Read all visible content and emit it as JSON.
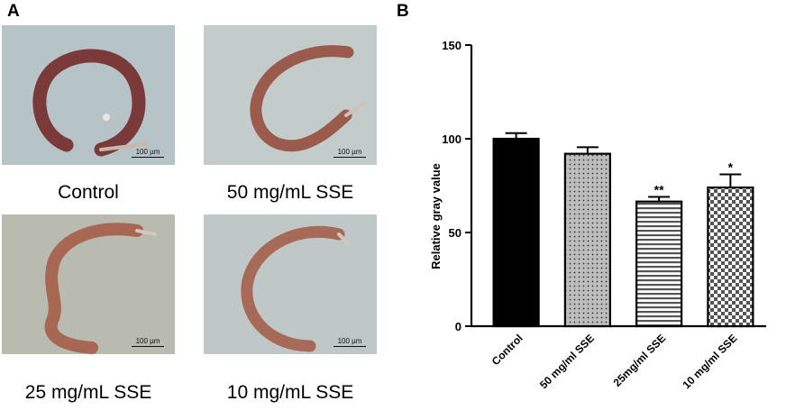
{
  "panel_a": {
    "letter": "A",
    "images": [
      {
        "caption": "Control",
        "scale": "100 µm"
      },
      {
        "caption": "50 mg/mL SSE",
        "scale": "100 µm"
      },
      {
        "caption": "25 mg/mL SSE",
        "scale": "100 µm"
      },
      {
        "caption": "10 mg/mL SSE",
        "scale": "100 µm"
      }
    ],
    "colors": {
      "bg": "#b8c3c4",
      "worm": "#b07060"
    }
  },
  "panel_b": {
    "letter": "B"
  },
  "chart_data": {
    "type": "bar",
    "ylabel": "Relative gray value",
    "categories": [
      "Control",
      "50 mg/ml SSE",
      "25mg/ml SSE",
      "10 mg/ml SSE"
    ],
    "values": [
      100,
      92,
      66.5,
      74
    ],
    "errors": [
      3,
      3.5,
      2.5,
      7
    ],
    "significance": [
      "",
      "",
      "**",
      "*"
    ],
    "ylim": [
      0,
      150
    ],
    "yticks": [
      0,
      50,
      100,
      150
    ],
    "fills": [
      "solid-black",
      "dots",
      "horizontal-stripes",
      "checker"
    ]
  }
}
